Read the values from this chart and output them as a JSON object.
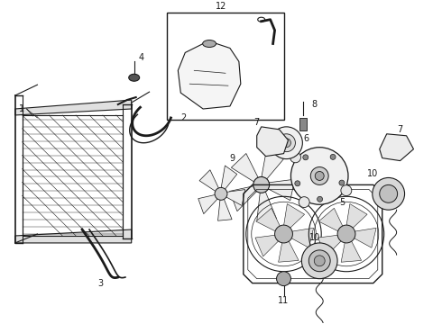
{
  "bg_color": "#ffffff",
  "line_color": "#1a1a1a",
  "label_color": "#000000",
  "figsize": [
    4.9,
    3.6
  ],
  "dpi": 100,
  "font_size": 7
}
